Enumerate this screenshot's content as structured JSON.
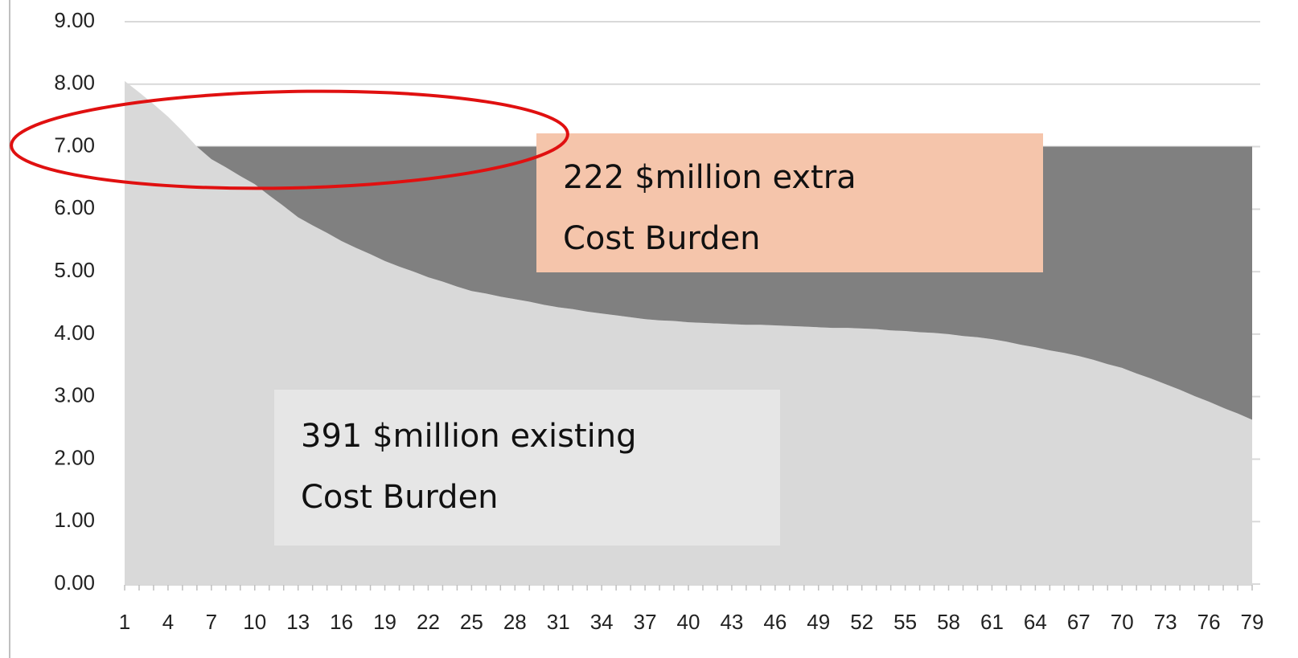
{
  "chart_data": {
    "type": "area",
    "stacked": true,
    "categories": [
      1,
      null,
      null,
      4,
      null,
      null,
      7,
      null,
      null,
      10,
      null,
      null,
      13,
      null,
      null,
      16,
      null,
      null,
      19,
      null,
      null,
      22,
      null,
      null,
      25,
      null,
      null,
      28,
      null,
      null,
      31,
      null,
      null,
      34,
      null,
      null,
      37,
      null,
      null,
      40,
      null,
      null,
      43,
      null,
      null,
      46,
      null,
      null,
      49,
      null,
      null,
      52,
      null,
      null,
      55,
      null,
      null,
      58,
      null,
      null,
      61,
      null,
      null,
      64,
      null,
      null,
      67,
      null,
      null,
      70,
      null,
      null,
      73,
      null,
      null,
      76,
      null,
      null,
      79
    ],
    "series": [
      {
        "color": "#d9d9d9",
        "values": [
          8.05,
          7.87,
          7.68,
          7.48,
          7.25,
          7.0,
          6.8,
          6.67,
          6.53,
          6.4,
          6.22,
          6.05,
          5.87,
          5.74,
          5.62,
          5.49,
          5.38,
          5.28,
          5.17,
          5.08,
          5.0,
          4.91,
          4.84,
          4.76,
          4.69,
          4.65,
          4.6,
          4.56,
          4.52,
          4.47,
          4.43,
          4.4,
          4.36,
          4.33,
          4.3,
          4.27,
          4.24,
          4.22,
          4.21,
          4.19,
          4.18,
          4.17,
          4.16,
          4.15,
          4.15,
          4.14,
          4.13,
          4.12,
          4.11,
          4.1,
          4.1,
          4.09,
          4.08,
          4.06,
          4.05,
          4.03,
          4.02,
          4.0,
          3.97,
          3.95,
          3.92,
          3.88,
          3.83,
          3.79,
          3.74,
          3.7,
          3.65,
          3.59,
          3.52,
          3.46,
          3.37,
          3.29,
          3.2,
          3.11,
          3.01,
          2.92,
          2.82,
          2.73,
          2.63
        ]
      },
      {
        "color": "#808080",
        "values": [
          null,
          null,
          null,
          null,
          null,
          0,
          0.2,
          0.33,
          0.47,
          0.6,
          0.78,
          0.95,
          1.13,
          1.26,
          1.38,
          1.51,
          1.62,
          1.72,
          1.83,
          1.92,
          2.0,
          2.09,
          2.16,
          2.24,
          2.31,
          2.35,
          2.4,
          2.44,
          2.48,
          2.53,
          2.57,
          2.6,
          2.64,
          2.67,
          2.7,
          2.73,
          2.76,
          2.78,
          2.79,
          2.81,
          2.82,
          2.83,
          2.84,
          2.85,
          2.85,
          2.86,
          2.87,
          2.88,
          2.89,
          2.9,
          2.9,
          2.91,
          2.92,
          2.94,
          2.95,
          2.97,
          2.98,
          3.0,
          3.03,
          3.05,
          3.08,
          3.12,
          3.17,
          3.21,
          3.26,
          3.3,
          3.35,
          3.41,
          3.48,
          3.54,
          3.63,
          3.71,
          3.8,
          3.89,
          3.99,
          4.08,
          4.18,
          4.27,
          4.37
        ]
      }
    ],
    "ylim": [
      0,
      9
    ],
    "yticks": [
      {
        "value": 0,
        "label": "0.00"
      },
      {
        "value": 1,
        "label": "1.00"
      },
      {
        "value": 2,
        "label": "2.00"
      },
      {
        "value": 3,
        "label": "3.00"
      },
      {
        "value": 4,
        "label": "4.00"
      },
      {
        "value": 5,
        "label": "5.00"
      },
      {
        "value": 6,
        "label": "6.00"
      },
      {
        "value": 7,
        "label": "7.00"
      },
      {
        "value": 8,
        "label": "8.00"
      },
      {
        "value": 9,
        "label": "9.00"
      }
    ],
    "grid": true,
    "annotations": [
      {
        "lines": [
          "222 $million extra",
          "Cost Burden"
        ],
        "color": "#f5c5ab"
      },
      {
        "lines": [
          "391 $million existing",
          "Cost Burden"
        ],
        "color": "#e6e6e6"
      }
    ]
  }
}
